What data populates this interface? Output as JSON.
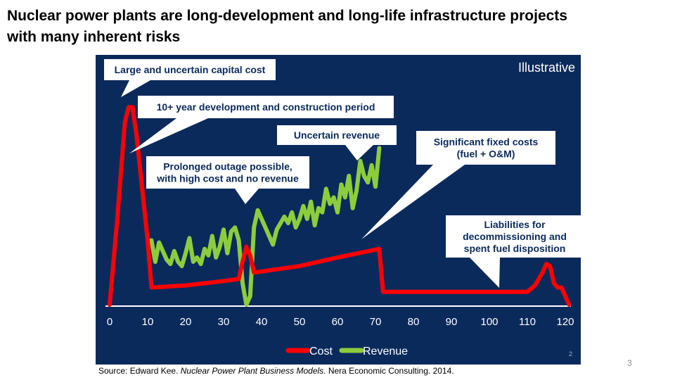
{
  "slide": {
    "title_line1": "Nuclear power plants are long-development and long-life infrastructure projects",
    "title_line2": "with many inherent risks",
    "source_prefix": "Source: Edward Kee. ",
    "source_title": "Nuclear Power Plant Business Models.",
    "source_suffix": " Nera Economic Consulting. 2014.",
    "page_number": "3"
  },
  "colors": {
    "panel_bg": "#0b2a5c",
    "cost": "#ff0000",
    "revenue": "#8ccd3c",
    "text_light": "#ffffff",
    "callout_bg": "#ffffff",
    "callout_text": "#0b2a5c"
  },
  "chart_data": {
    "type": "line",
    "tag": "Illustrative",
    "panel_footnote": "2",
    "xlim": [
      0,
      122
    ],
    "x_ticks": [
      0,
      10,
      20,
      30,
      40,
      50,
      60,
      70,
      80,
      90,
      100,
      110,
      120
    ],
    "ylim": [
      0,
      100
    ],
    "series": [
      {
        "name": "Cost",
        "points": [
          [
            0,
            0
          ],
          [
            2,
            40
          ],
          [
            4,
            85
          ],
          [
            5,
            92
          ],
          [
            6,
            92
          ],
          [
            7,
            80
          ],
          [
            10,
            30
          ],
          [
            11,
            8
          ],
          [
            20,
            9
          ],
          [
            30,
            11
          ],
          [
            34,
            12
          ],
          [
            35,
            20
          ],
          [
            36,
            27
          ],
          [
            37,
            23
          ],
          [
            38,
            15
          ],
          [
            50,
            18
          ],
          [
            60,
            22
          ],
          [
            71,
            26
          ],
          [
            72,
            6
          ],
          [
            80,
            6
          ],
          [
            90,
            6
          ],
          [
            100,
            6
          ],
          [
            110,
            6
          ],
          [
            112,
            9
          ],
          [
            114,
            15
          ],
          [
            115,
            19
          ],
          [
            116,
            18
          ],
          [
            117,
            10
          ],
          [
            118,
            8
          ],
          [
            119,
            8
          ],
          [
            120,
            4
          ],
          [
            121,
            0
          ]
        ]
      },
      {
        "name": "Revenue",
        "points": [
          [
            11,
            30
          ],
          [
            12,
            20
          ],
          [
            13,
            29
          ],
          [
            14,
            25
          ],
          [
            15,
            21
          ],
          [
            16,
            19
          ],
          [
            17,
            25
          ],
          [
            18,
            20
          ],
          [
            19,
            18
          ],
          [
            20,
            24
          ],
          [
            21,
            31
          ],
          [
            22,
            20
          ],
          [
            23,
            22
          ],
          [
            24,
            19
          ],
          [
            25,
            26
          ],
          [
            26,
            23
          ],
          [
            27,
            32
          ],
          [
            28,
            22
          ],
          [
            29,
            27
          ],
          [
            30,
            35
          ],
          [
            31,
            24
          ],
          [
            32,
            34
          ],
          [
            33,
            36
          ],
          [
            34,
            30
          ],
          [
            35,
            10
          ],
          [
            36,
            0
          ],
          [
            37,
            4
          ],
          [
            38,
            36
          ],
          [
            39,
            44
          ],
          [
            40,
            40
          ],
          [
            41,
            36
          ],
          [
            42,
            32
          ],
          [
            43,
            28
          ],
          [
            44,
            35
          ],
          [
            45,
            38
          ],
          [
            46,
            41
          ],
          [
            47,
            38
          ],
          [
            48,
            43
          ],
          [
            49,
            36
          ],
          [
            50,
            40
          ],
          [
            51,
            46
          ],
          [
            52,
            40
          ],
          [
            53,
            48
          ],
          [
            54,
            37
          ],
          [
            55,
            45
          ],
          [
            56,
            43
          ],
          [
            57,
            54
          ],
          [
            58,
            47
          ],
          [
            59,
            50
          ],
          [
            60,
            43
          ],
          [
            61,
            56
          ],
          [
            62,
            50
          ],
          [
            63,
            60
          ],
          [
            64,
            45
          ],
          [
            65,
            53
          ],
          [
            66,
            67
          ],
          [
            67,
            60
          ],
          [
            68,
            57
          ],
          [
            69,
            65
          ],
          [
            70,
            55
          ],
          [
            71,
            73
          ]
        ]
      }
    ],
    "annotations": [
      {
        "id": "capital-cost",
        "line1": "Large and uncertain capital cost",
        "line2": ""
      },
      {
        "id": "development-period",
        "line1": "10+ year development and construction period",
        "line2": ""
      },
      {
        "id": "uncertain-revenue",
        "line1": "Uncertain revenue",
        "line2": ""
      },
      {
        "id": "fixed-costs",
        "line1": "Significant fixed costs",
        "line2": "(fuel + O&M)"
      },
      {
        "id": "prolonged-outage",
        "line1": "Prolonged outage possible,",
        "line2": "with high cost and no revenue"
      },
      {
        "id": "liabilities",
        "line1": "Liabilities for",
        "line2": "decommissioning and",
        "line3": "spent fuel disposition"
      }
    ],
    "legend": [
      {
        "name": "Cost"
      },
      {
        "name": "Revenue"
      }
    ]
  }
}
